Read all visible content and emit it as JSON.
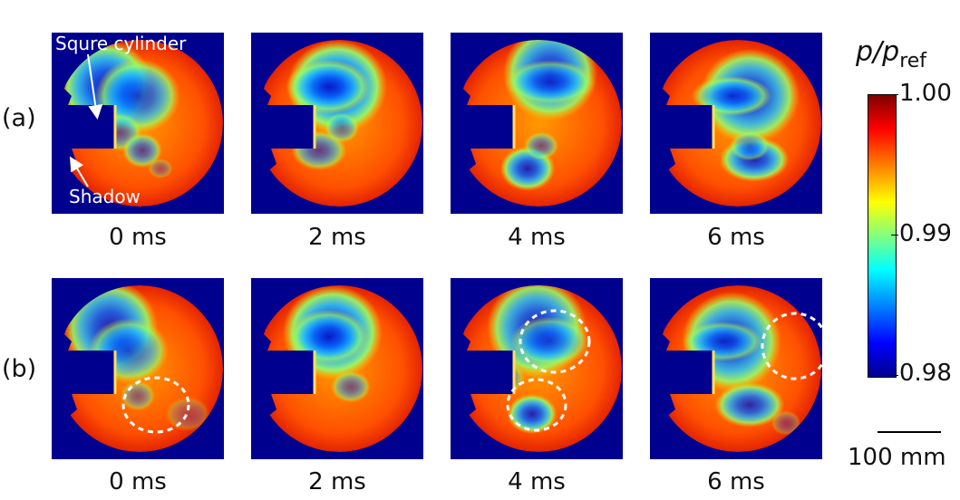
{
  "rows": [
    {
      "label": "(a)",
      "panels": [
        {
          "time": "0 ms",
          "annotations": [
            "Squre cylinder",
            "Shadow"
          ],
          "blobs": "a0"
        },
        {
          "time": "2 ms",
          "blobs": "a1"
        },
        {
          "time": "4 ms",
          "blobs": "a2"
        },
        {
          "time": "6 ms",
          "blobs": "a3"
        }
      ]
    },
    {
      "label": "(b)",
      "panels": [
        {
          "time": "0 ms",
          "blobs": "b0"
        },
        {
          "time": "2 ms",
          "blobs": "b1"
        },
        {
          "time": "4 ms",
          "blobs": "b2"
        },
        {
          "time": "6 ms",
          "blobs": "b3"
        }
      ]
    }
  ],
  "colorbar": {
    "title_var": "p/p",
    "title_sub": "ref",
    "ticks": [
      "1.00",
      "0.99",
      "0.98"
    ],
    "colormap": "jet"
  },
  "scale_bar": {
    "label": "100 mm"
  },
  "colors": {
    "background_field": "#00008f",
    "dashed_circle": "#ffffff"
  }
}
